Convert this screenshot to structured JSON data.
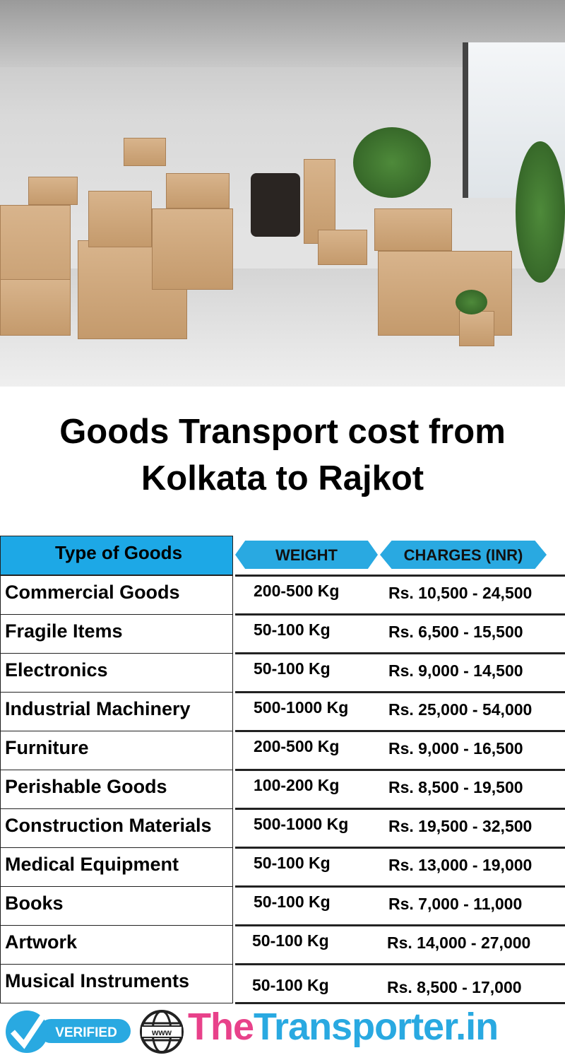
{
  "title": {
    "line1": "Goods Transport cost from",
    "line2": "Kolkata to Rajkot"
  },
  "table": {
    "headers": {
      "type": "Type of Goods",
      "weight": "WEIGHT",
      "charges": "CHARGES (INR)"
    },
    "rows": [
      {
        "type": "Commercial Goods",
        "weight": "200-500 Kg",
        "charges": "Rs. 10,500 - 24,500"
      },
      {
        "type": "Fragile Items",
        "weight": "50-100 Kg",
        "charges": "Rs. 6,500 - 15,500"
      },
      {
        "type": "Electronics",
        "weight": "50-100 Kg",
        "charges": "Rs. 9,000 - 14,500"
      },
      {
        "type": "Industrial Machinery",
        "weight": "500-1000 Kg",
        "charges": "Rs. 25,000 - 54,000"
      },
      {
        "type": "Furniture",
        "weight": "200-500 Kg",
        "charges": "Rs. 9,000 - 16,500"
      },
      {
        "type": "Perishable Goods",
        "weight": "100-200 Kg",
        "charges": "Rs. 8,500 - 19,500"
      },
      {
        "type": "Construction Materials",
        "weight": "500-1000 Kg",
        "charges": "Rs. 19,500 - 32,500"
      },
      {
        "type": "Medical Equipment",
        "weight": "50-100 Kg",
        "charges": "Rs. 13,000 - 19,000"
      },
      {
        "type": "Books",
        "weight": "50-100 Kg",
        "charges": "Rs. 7,000 - 11,000"
      },
      {
        "type": "Artwork",
        "weight": "50-100 Kg",
        "charges": "Rs. 14,000 - 27,000"
      },
      {
        "type": "Musical Instruments",
        "weight": "50-100 Kg",
        "charges": "Rs. 8,500 - 17,000"
      }
    ]
  },
  "footer": {
    "verified": "VERIFIED",
    "www": "www",
    "brand_part1": "The",
    "brand_part2": "Transporter.in"
  },
  "colors": {
    "accent_blue": "#29A9E1",
    "brand_pink": "#E8418A"
  }
}
